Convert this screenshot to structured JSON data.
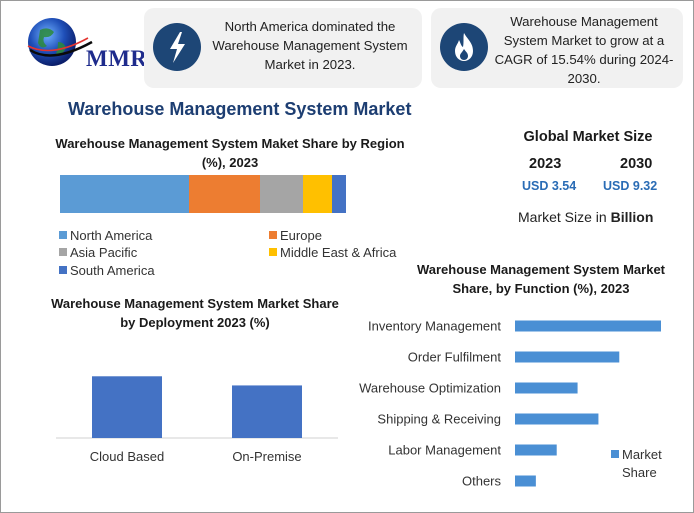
{
  "logo": {
    "text": "MMR"
  },
  "cards": [
    {
      "icon": "lightning-bolt-icon",
      "text": "North America dominated the Warehouse Management System Market in 2023."
    },
    {
      "icon": "flame-icon",
      "text": "Warehouse Management System Market to grow at a CAGR of 15.54% during 2024-2030."
    }
  ],
  "main_title": "Warehouse Management System Market",
  "global_market": {
    "title": "Global Market Size",
    "years": [
      "2023",
      "2030"
    ],
    "values": [
      "USD 3.54",
      "USD 9.32"
    ],
    "unit_prefix": "Market Size in ",
    "unit_bold": "Billion"
  },
  "colors": {
    "north_america": "#5b9bd5",
    "europe": "#ed7d31",
    "asia_pacific": "#a5a5a5",
    "middle_east_africa": "#ffc000",
    "south_america": "#4472c4",
    "deployment_bar": "#4472c4",
    "function_bar": "#4a8fd4"
  },
  "chart_data": [
    {
      "type": "bar",
      "orientation": "horizontal-stacked",
      "title": "Warehouse Management System Maket Share by Region (%), 2023",
      "series": [
        {
          "name": "North America",
          "values": [
            45
          ]
        },
        {
          "name": "Europe",
          "values": [
            25
          ]
        },
        {
          "name": "Asia Pacific",
          "values": [
            15
          ]
        },
        {
          "name": "Middle East & Africa",
          "values": [
            10
          ]
        },
        {
          "name": "South America",
          "values": [
            5
          ]
        }
      ],
      "xlim": [
        0,
        100
      ],
      "legend": "bottom"
    },
    {
      "type": "bar",
      "title": "Warehouse Management System Market Share by Deployment 2023 (%)",
      "categories": [
        "Cloud Based",
        "On-Premise"
      ],
      "values": [
        54,
        46
      ],
      "ylim": [
        0,
        70
      ],
      "grid": false
    },
    {
      "type": "bar",
      "orientation": "horizontal",
      "title": "Warehouse Management System Market Share, by Function (%), 2023",
      "categories": [
        "Inventory Management",
        "Order Fulfilment",
        "Warehouse Optimization",
        "Shipping & Receiving",
        "Labor Management",
        "Others"
      ],
      "series": [
        {
          "name": "Market Share",
          "values": [
            35,
            25,
            15,
            20,
            10,
            5
          ]
        }
      ],
      "xlim": [
        0,
        35
      ],
      "legend": "right"
    }
  ]
}
